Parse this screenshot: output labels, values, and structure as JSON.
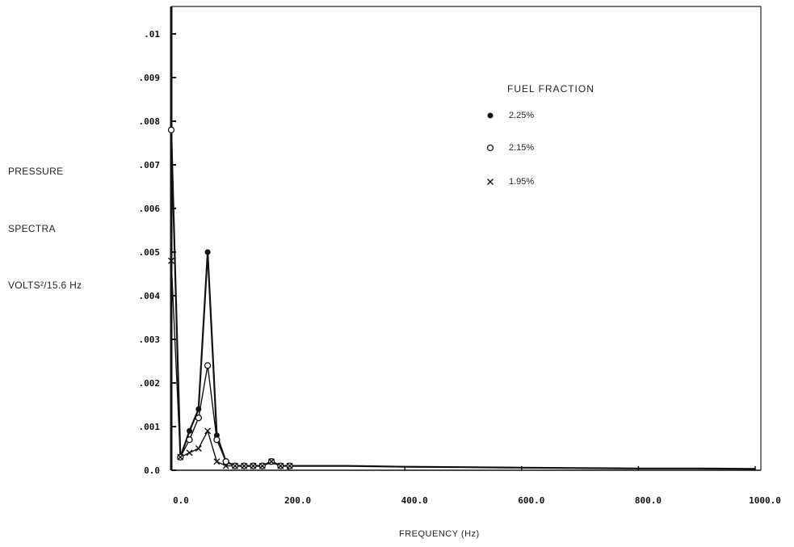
{
  "chart_data": {
    "type": "line",
    "title": "",
    "xlabel": "FREQUENCY (Hz)",
    "ylabel": {
      "line1": "PRESSURE",
      "line2": "SPECTRA",
      "line3": "VOLTS²/15.6 Hz"
    },
    "xlim": [
      0,
      1000
    ],
    "ylim": [
      0,
      0.0105
    ],
    "x_ticks": [
      0,
      200,
      400,
      600,
      800,
      1000
    ],
    "x_tick_labels": [
      "0.0",
      "200.0",
      "400.0",
      "600.0",
      "800.0",
      "1000.0"
    ],
    "y_ticks": [
      0,
      0.001,
      0.002,
      0.003,
      0.004,
      0.005,
      0.006,
      0.007,
      0.008,
      0.009,
      0.01
    ],
    "y_tick_labels": [
      "0.0",
      ".001",
      ".002",
      ".003",
      ".004",
      ".005",
      ".006",
      ".007",
      ".008",
      ".009",
      ".01"
    ],
    "grid": false,
    "legend": {
      "title": "FUEL FRACTION",
      "placement": "top-right"
    },
    "series": [
      {
        "name": "2.25%",
        "marker": "filled-circle",
        "x": [
          0,
          15.6,
          31.2,
          46.8,
          62.4,
          78,
          93.6,
          109.2,
          124.8,
          140.4,
          156,
          171.6,
          187.2,
          202.8,
          250,
          300,
          400,
          500,
          600,
          700,
          800,
          900,
          1000
        ],
        "y": [
          0.0078,
          0.0003,
          0.0009,
          0.0014,
          0.005,
          0.0008,
          0.0002,
          0.0001,
          0.0001,
          0.0001,
          0.0001,
          0.0002,
          0.0001,
          0.0001,
          0.0001,
          0.0001,
          8e-05,
          7e-05,
          6e-05,
          5e-05,
          4e-05,
          4e-05,
          3e-05
        ]
      },
      {
        "name": "2.15%",
        "marker": "open-circle",
        "x": [
          0,
          15.6,
          31.2,
          46.8,
          62.4,
          78,
          93.6,
          109.2,
          124.8,
          140.4,
          156,
          171.6,
          187.2,
          202.8,
          250,
          300,
          400,
          500,
          600,
          700,
          800,
          900,
          1000
        ],
        "y": [
          0.0078,
          0.0003,
          0.0007,
          0.0012,
          0.0024,
          0.0007,
          0.0002,
          0.0001,
          0.0001,
          0.0001,
          0.0001,
          0.0002,
          0.0001,
          0.0001,
          0.0001,
          0.0001,
          8e-05,
          7e-05,
          6e-05,
          5e-05,
          4e-05,
          4e-05,
          3e-05
        ]
      },
      {
        "name": "1.95%",
        "marker": "x",
        "x": [
          0,
          15.6,
          31.2,
          46.8,
          62.4,
          78,
          93.6,
          109.2,
          124.8,
          140.4,
          156,
          171.6,
          187.2,
          202.8,
          250,
          300,
          400,
          500,
          600,
          700,
          800,
          900,
          1000
        ],
        "y": [
          0.0048,
          0.0003,
          0.0004,
          0.0005,
          0.0009,
          0.0002,
          0.0001,
          0.0001,
          0.0001,
          0.0001,
          0.0001,
          0.0002,
          0.0001,
          0.0001,
          0.0001,
          0.0001,
          8e-05,
          7e-05,
          6e-05,
          5e-05,
          4e-05,
          4e-05,
          3e-05
        ]
      }
    ]
  }
}
